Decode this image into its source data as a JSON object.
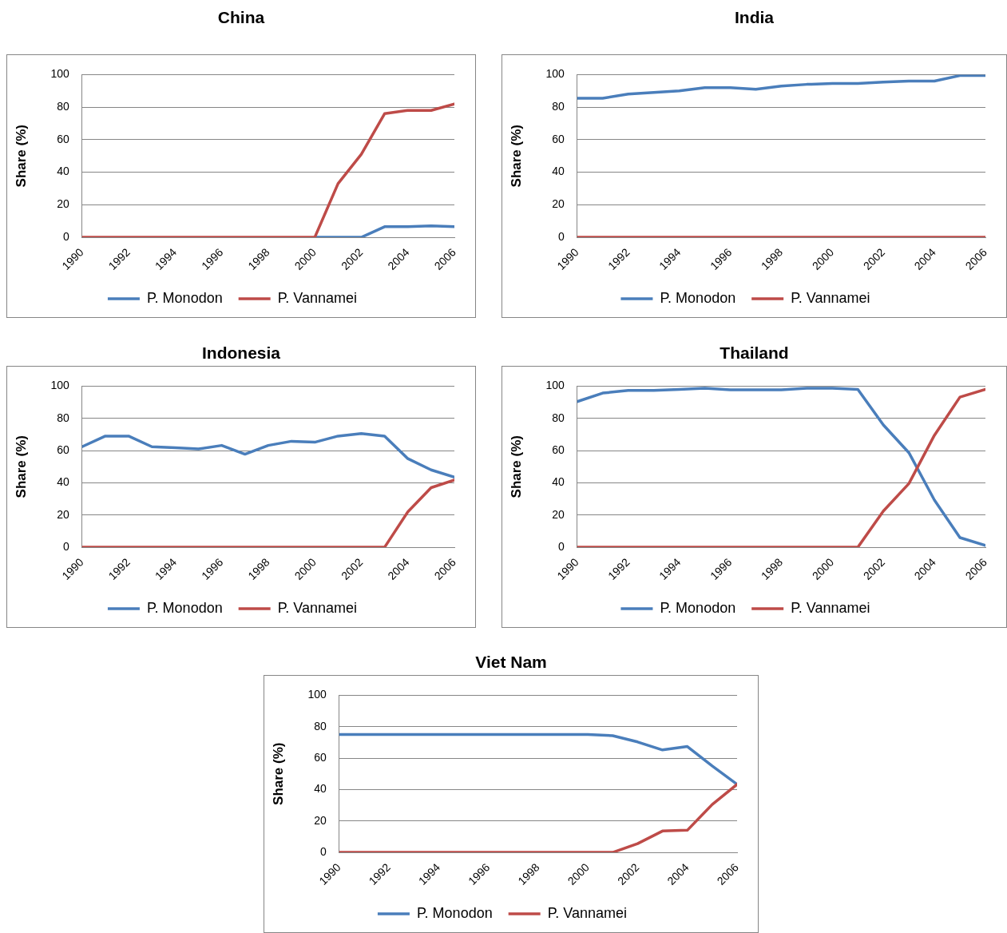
{
  "chart_data": [
    {
      "type": "line",
      "title": "China",
      "ylabel": "Share (%)",
      "x": [
        1990,
        1991,
        1992,
        1993,
        1994,
        1995,
        1996,
        1997,
        1998,
        1999,
        2000,
        2001,
        2002,
        2003,
        2004,
        2005,
        2006
      ],
      "xlim": [
        1990,
        2006
      ],
      "xticks": [
        1990,
        1992,
        1994,
        1996,
        1998,
        2000,
        2002,
        2004,
        2006
      ],
      "ylim": [
        0,
        100
      ],
      "yticks": [
        0,
        20,
        40,
        60,
        80,
        100
      ],
      "grid": "y",
      "legend": "bottom",
      "marker": "none",
      "line_style": "solid",
      "series": [
        {
          "name": "P. Monodon",
          "color": "#4a7ebb",
          "values": [
            null,
            null,
            null,
            null,
            null,
            null,
            null,
            null,
            null,
            null,
            0,
            0,
            0,
            6.5,
            6.5,
            7,
            6.5
          ]
        },
        {
          "name": "P. Vannamei",
          "color": "#be4b48",
          "values": [
            0,
            0,
            0,
            0,
            0,
            0,
            0,
            0,
            0,
            0,
            0,
            33,
            51,
            76,
            78,
            78,
            82
          ]
        }
      ]
    },
    {
      "type": "line",
      "title": "India",
      "ylabel": "Share (%)",
      "x": [
        1990,
        1991,
        1992,
        1993,
        1994,
        1995,
        1996,
        1997,
        1998,
        1999,
        2000,
        2001,
        2002,
        2003,
        2004,
        2005,
        2006
      ],
      "xlim": [
        1990,
        2006
      ],
      "xticks": [
        1990,
        1992,
        1994,
        1996,
        1998,
        2000,
        2002,
        2004,
        2006
      ],
      "ylim": [
        0,
        100
      ],
      "yticks": [
        0,
        20,
        40,
        60,
        80,
        100
      ],
      "grid": "y",
      "legend": "bottom",
      "marker": "none",
      "line_style": "solid",
      "series": [
        {
          "name": "P. Monodon",
          "color": "#4a7ebb",
          "values": [
            85.5,
            85.5,
            88,
            89,
            90,
            92,
            92,
            91,
            93,
            94,
            94.5,
            94.5,
            95.4,
            96,
            96,
            99.4,
            99.4
          ]
        },
        {
          "name": "P. Vannamei",
          "color": "#be4b48",
          "values": [
            0,
            0,
            0,
            0,
            0,
            0,
            0,
            0,
            0,
            0,
            0,
            0,
            0,
            0,
            0,
            0,
            0
          ]
        }
      ]
    },
    {
      "type": "line",
      "title": "Indonesia",
      "ylabel": "Share (%)",
      "x": [
        1990,
        1991,
        1992,
        1993,
        1994,
        1995,
        1996,
        1997,
        1998,
        1999,
        2000,
        2001,
        2002,
        2003,
        2004,
        2005,
        2006
      ],
      "xlim": [
        1990,
        2006
      ],
      "xticks": [
        1990,
        1992,
        1994,
        1996,
        1998,
        2000,
        2002,
        2004,
        2006
      ],
      "ylim": [
        0,
        100
      ],
      "yticks": [
        0,
        20,
        40,
        60,
        80,
        100
      ],
      "grid": "y",
      "legend": "bottom",
      "marker": "none",
      "line_style": "solid",
      "series": [
        {
          "name": "P. Monodon",
          "color": "#4a7ebb",
          "values": [
            62.4,
            69,
            69,
            62.4,
            61.8,
            61,
            63.2,
            57.8,
            63.2,
            65.8,
            65.2,
            69,
            70.6,
            69,
            55,
            48,
            43.5
          ]
        },
        {
          "name": "P. Vannamei",
          "color": "#be4b48",
          "values": [
            0,
            0,
            0,
            0,
            0,
            0,
            0,
            0,
            0,
            0,
            0,
            0,
            0,
            0,
            22,
            37,
            41.8
          ]
        }
      ]
    },
    {
      "type": "line",
      "title": "Thailand",
      "ylabel": "Share (%)",
      "x": [
        1990,
        1991,
        1992,
        1993,
        1994,
        1995,
        1996,
        1997,
        1998,
        1999,
        2000,
        2001,
        2002,
        2003,
        2004,
        2005,
        2006
      ],
      "xlim": [
        1990,
        2006
      ],
      "xticks": [
        1990,
        1992,
        1994,
        1996,
        1998,
        2000,
        2002,
        2004,
        2006
      ],
      "ylim": [
        0,
        100
      ],
      "yticks": [
        0,
        20,
        40,
        60,
        80,
        100
      ],
      "grid": "y",
      "legend": "bottom",
      "marker": "none",
      "line_style": "solid",
      "series": [
        {
          "name": "P. Monodon",
          "color": "#4a7ebb",
          "values": [
            90.4,
            95.7,
            97.3,
            97.3,
            98,
            98.7,
            97.7,
            97.7,
            97.7,
            98.7,
            98.7,
            98,
            75.9,
            58.7,
            29.3,
            6,
            1.1
          ]
        },
        {
          "name": "P. Vannamei",
          "color": "#be4b48",
          "values": [
            0,
            0,
            0,
            0,
            0,
            0,
            0,
            0,
            0,
            0,
            0,
            0,
            22.5,
            39.5,
            69.5,
            93.2,
            98
          ]
        }
      ]
    },
    {
      "type": "line",
      "title": "Viet Nam",
      "ylabel": "Share (%)",
      "x": [
        1990,
        1991,
        1992,
        1993,
        1994,
        1995,
        1996,
        1997,
        1998,
        1999,
        2000,
        2001,
        2002,
        2003,
        2004,
        2005,
        2006
      ],
      "xlim": [
        1990,
        2006
      ],
      "xticks": [
        1990,
        1992,
        1994,
        1996,
        1998,
        2000,
        2002,
        2004,
        2006
      ],
      "ylim": [
        0,
        100
      ],
      "yticks": [
        0,
        20,
        40,
        60,
        80,
        100
      ],
      "grid": "y",
      "legend": "bottom",
      "marker": "none",
      "line_style": "solid",
      "series": [
        {
          "name": "P. Monodon",
          "color": "#4a7ebb",
          "values": [
            75.1,
            75.1,
            75.1,
            75.1,
            75.1,
            75.1,
            75.1,
            75.1,
            75.1,
            75.1,
            75.1,
            74.3,
            70.3,
            65.2,
            67.4,
            55,
            43.3
          ]
        },
        {
          "name": "P. Vannamei",
          "color": "#be4b48",
          "values": [
            0,
            0,
            0,
            0,
            0,
            0,
            0,
            0,
            0,
            0,
            0,
            0,
            5.6,
            13.6,
            14.1,
            30.5,
            43.3
          ]
        }
      ]
    }
  ]
}
